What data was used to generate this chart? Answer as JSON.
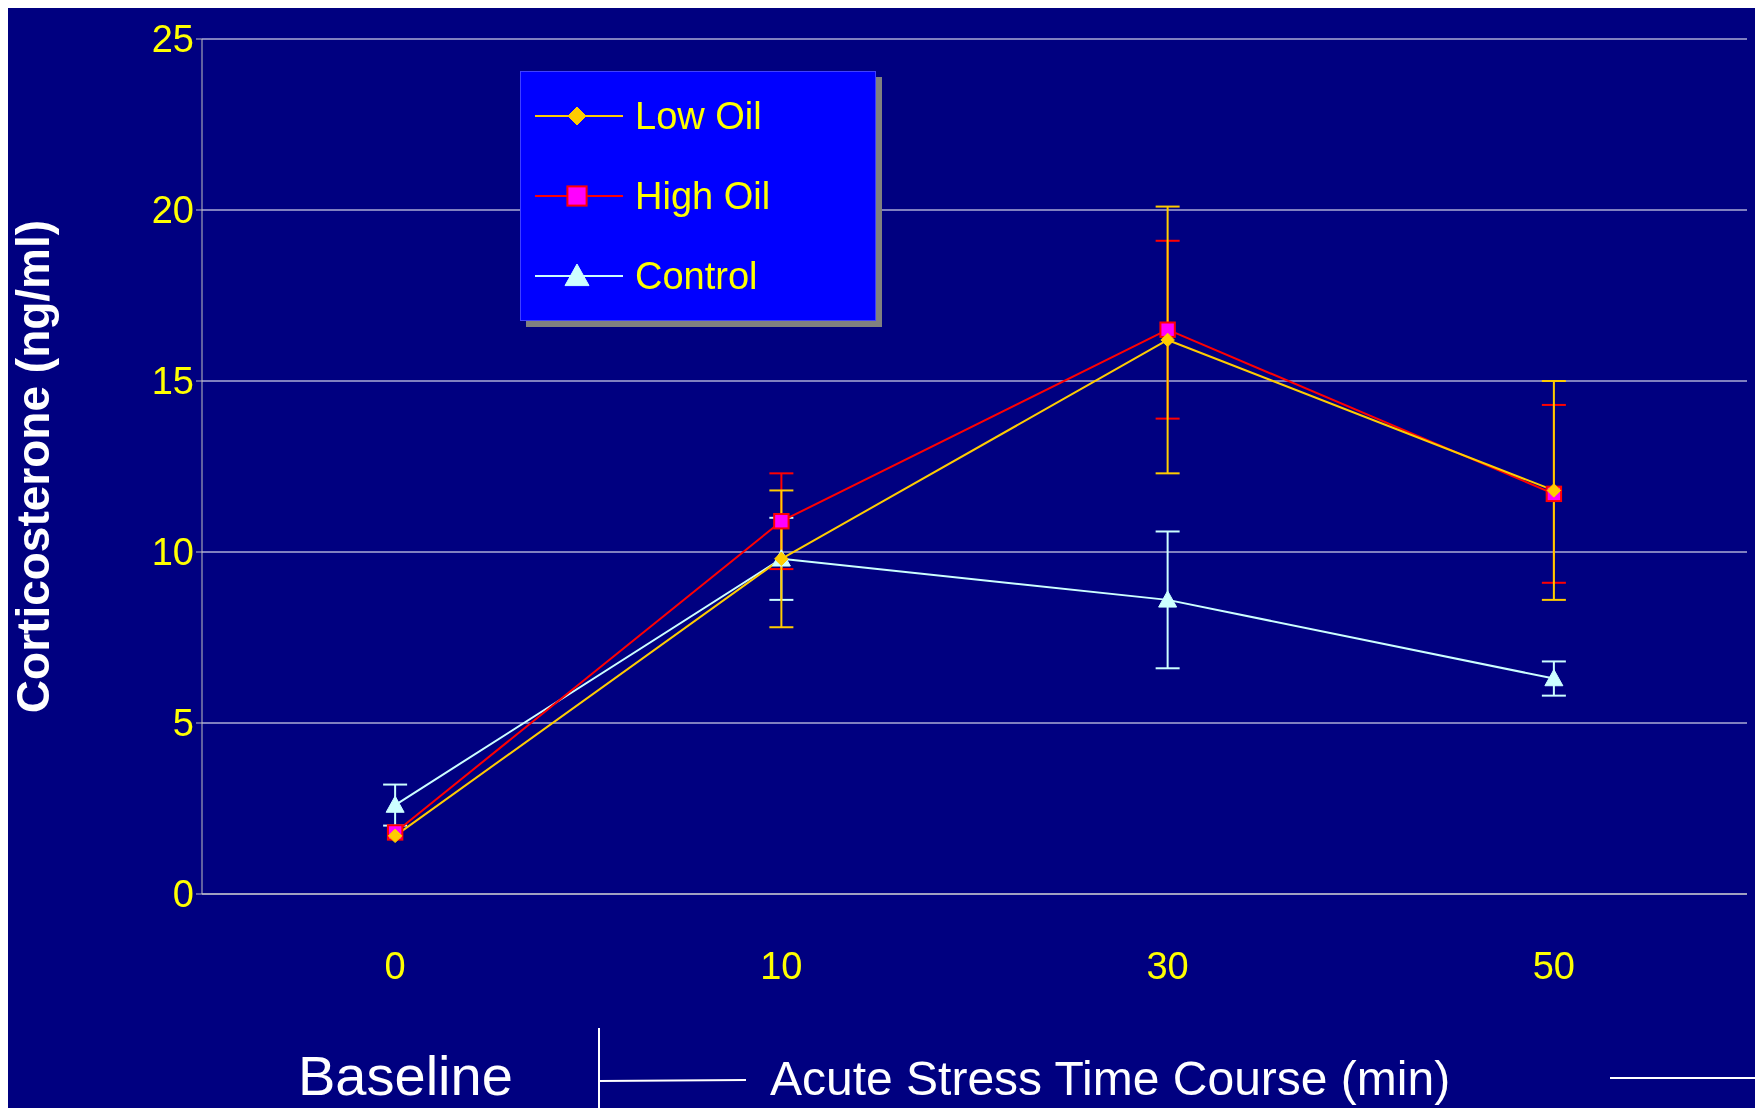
{
  "chart_data": {
    "type": "line",
    "ylabel": "Corticosterone (ng/ml)",
    "xlabel": "Acute Stress Time Course (min)",
    "annotations": [
      "Baseline"
    ],
    "categories": [
      "0",
      "10",
      "30",
      "50"
    ],
    "series": [
      {
        "name": "Low Oil",
        "color": "#ffcc00",
        "marker": "diamond",
        "values": [
          1.7,
          9.8,
          16.2,
          11.8
        ],
        "errors": [
          null,
          2.0,
          3.9,
          3.2
        ]
      },
      {
        "name": "High Oil",
        "color": "#ff0000",
        "marker": "square",
        "values": [
          1.8,
          10.9,
          16.5,
          11.7
        ],
        "errors": [
          null,
          1.4,
          2.6,
          2.6
        ]
      },
      {
        "name": "Control",
        "color": "#ccffff",
        "marker": "triangle",
        "values": [
          2.6,
          9.8,
          8.6,
          6.3
        ],
        "errors": [
          0.6,
          1.2,
          2.0,
          0.5
        ]
      }
    ],
    "ylim": [
      0,
      25
    ],
    "yticks": [
      0,
      5,
      10,
      15,
      20,
      25
    ],
    "grid": "y",
    "legend": "top left"
  }
}
